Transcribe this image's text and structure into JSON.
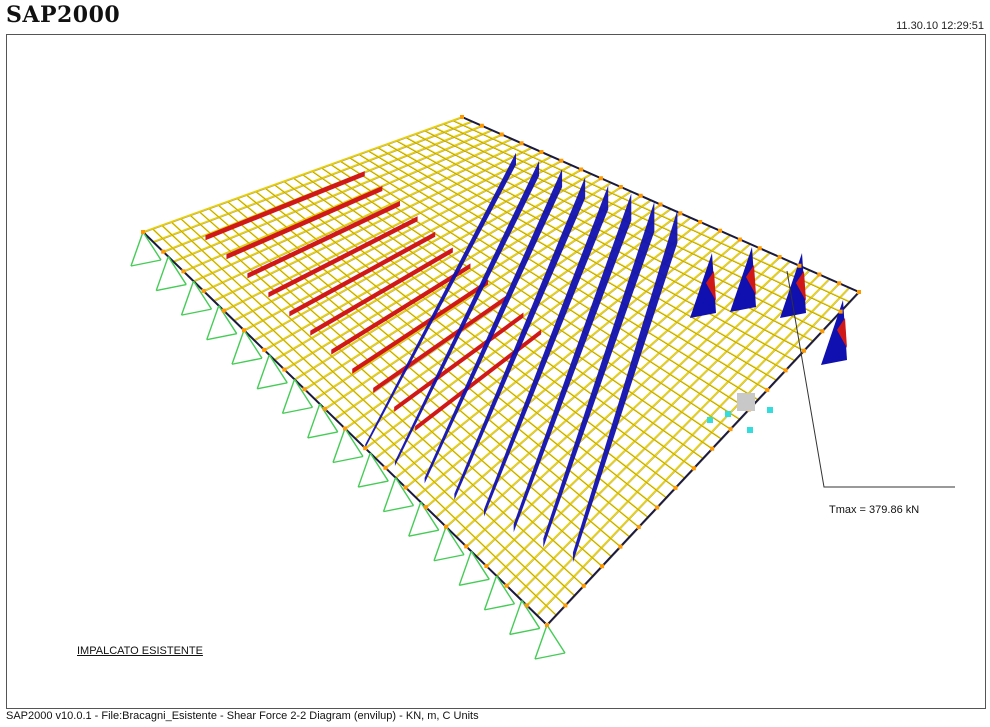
{
  "header": {
    "app_title": "SAP2000",
    "timestamp": "11.30.10 12:29:51"
  },
  "viewport": {
    "annotation_text": "Tmax = 379.86 kN",
    "model_caption": "IMPALCATO ESISTENTE"
  },
  "footer": {
    "status_line": "SAP2000 v10.0.1 - File:Bracagni_Esistente -   Shear Force 2-2 Diagram   (envilup) - KN, m, C Units"
  },
  "colors": {
    "frame_members": "#e8d000",
    "positive_shear": "#d01818",
    "negative_shear": "#1010b0",
    "supports": "#44cc55",
    "joints": "#ff9900",
    "leader_line": "#333333"
  }
}
